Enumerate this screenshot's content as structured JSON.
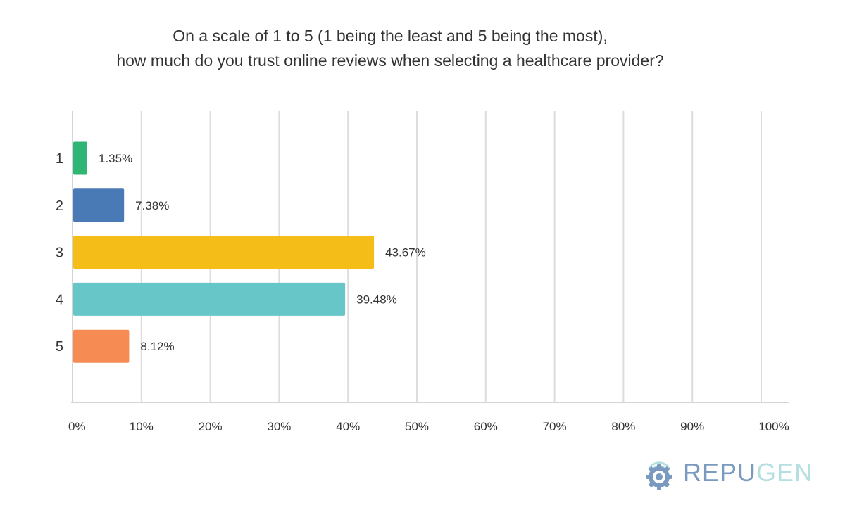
{
  "chart_data": {
    "type": "bar",
    "orientation": "horizontal",
    "title_lines": [
      "On a scale of 1 to 5 (1 being the least and 5 being the most),",
      "how much do you trust online reviews when selecting a healthcare provider?"
    ],
    "categories": [
      "1",
      "2",
      "3",
      "4",
      "5"
    ],
    "values": [
      1.35,
      7.38,
      43.67,
      39.48,
      8.12
    ],
    "value_labels": [
      "1.35%",
      "7.38%",
      "43.67%",
      "39.48%",
      "8.12%"
    ],
    "colors": [
      "#2fb574",
      "#4a7ab6",
      "#f5bd18",
      "#67c7c8",
      "#f68b54"
    ],
    "xlim": [
      0,
      100
    ],
    "xticks": [
      0,
      10,
      20,
      30,
      40,
      50,
      60,
      70,
      80,
      90,
      100
    ],
    "xtick_labels": [
      "0%",
      "10%",
      "20%",
      "30%",
      "40%",
      "50%",
      "60%",
      "70%",
      "80%",
      "90%",
      "100%"
    ],
    "grid": true,
    "xlabel": "",
    "ylabel": ""
  },
  "logo": {
    "part1": "REPU",
    "part2": "GEN",
    "color1": "#7a9bbf",
    "color2": "#b5dfe0"
  }
}
